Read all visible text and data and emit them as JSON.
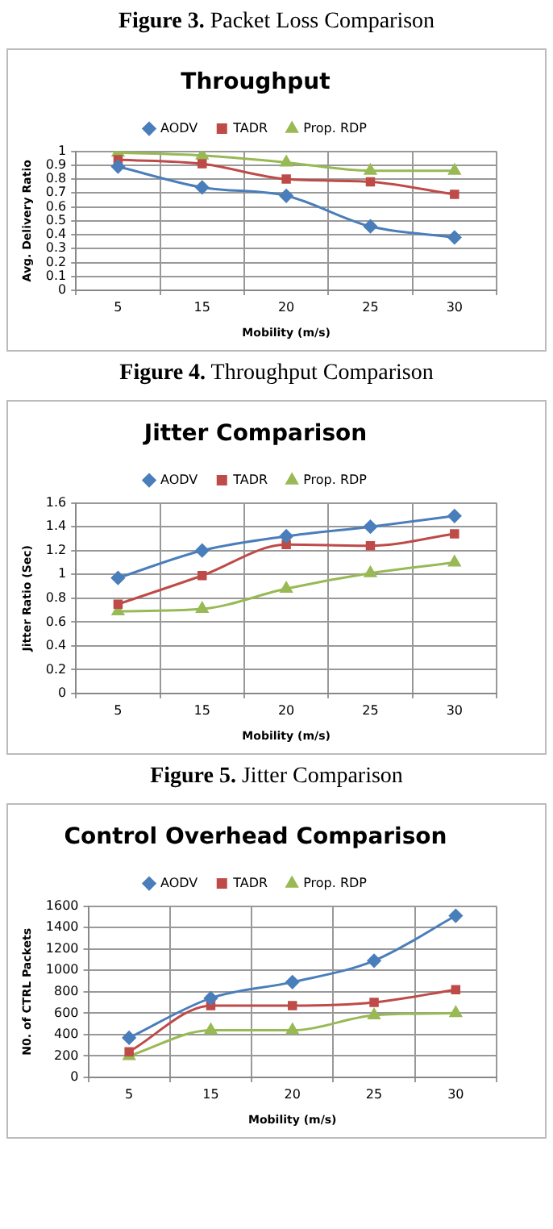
{
  "chart_data": [
    {
      "type": "line",
      "title": "Throughput",
      "xlabel": "Mobility (m/s)",
      "ylabel": "Avg. Delivery Ratio",
      "categories": [
        "5",
        "15",
        "20",
        "25",
        "30"
      ],
      "series": [
        {
          "name": "AODV",
          "color": "#4a7ebb",
          "marker": "diamond",
          "values": [
            0.89,
            0.74,
            0.68,
            0.46,
            0.38
          ]
        },
        {
          "name": "TADR",
          "color": "#be4b48",
          "marker": "square",
          "values": [
            0.94,
            0.91,
            0.8,
            0.78,
            0.69
          ]
        },
        {
          "name": "Prop. RDP",
          "color": "#98b954",
          "marker": "triangle",
          "values": [
            0.99,
            0.97,
            0.92,
            0.86,
            0.86
          ]
        }
      ],
      "ylim": [
        0,
        1
      ],
      "yticks": [
        0,
        0.1,
        0.2,
        0.3,
        0.4,
        0.5,
        0.6,
        0.7,
        0.8,
        0.9,
        1
      ],
      "grid": true,
      "legend": "top",
      "annotations": [
        "Figure 3. Packet Loss Comparison",
        "Figure 4. Throughput Comparison"
      ]
    },
    {
      "type": "line",
      "title": "Jitter Comparison",
      "xlabel": "Mobility (m/s)",
      "ylabel": "Jitter Ratio (Sec)",
      "categories": [
        "5",
        "15",
        "20",
        "25",
        "30"
      ],
      "series": [
        {
          "name": "AODV",
          "color": "#4a7ebb",
          "marker": "diamond",
          "values": [
            0.97,
            1.2,
            1.32,
            1.4,
            1.49
          ]
        },
        {
          "name": "TADR",
          "color": "#be4b48",
          "marker": "square",
          "values": [
            0.75,
            0.99,
            1.25,
            1.24,
            1.34
          ]
        },
        {
          "name": "Prop. RDP",
          "color": "#98b954",
          "marker": "triangle",
          "values": [
            0.69,
            0.71,
            0.88,
            1.01,
            1.1
          ]
        }
      ],
      "ylim": [
        0,
        1.6
      ],
      "yticks": [
        0,
        0.2,
        0.4,
        0.6,
        0.8,
        1,
        1.2,
        1.4,
        1.6
      ],
      "grid": true,
      "legend": "top",
      "annotations": [
        "Figure 5. Jitter Comparison"
      ]
    },
    {
      "type": "line",
      "title": "Control Overhead Comparison",
      "xlabel": "Mobility (m/s)",
      "ylabel": "N0. of CTRL Packets",
      "categories": [
        "5",
        "15",
        "20",
        "25",
        "30"
      ],
      "series": [
        {
          "name": "AODV",
          "color": "#4a7ebb",
          "marker": "diamond",
          "values": [
            370,
            740,
            890,
            1090,
            1510
          ]
        },
        {
          "name": "TADR",
          "color": "#be4b48",
          "marker": "square",
          "values": [
            240,
            670,
            670,
            700,
            820
          ]
        },
        {
          "name": "Prop. RDP",
          "color": "#98b954",
          "marker": "triangle",
          "values": [
            200,
            440,
            440,
            580,
            600
          ]
        }
      ],
      "ylim": [
        0,
        1600
      ],
      "yticks": [
        0,
        200,
        400,
        600,
        800,
        1000,
        1200,
        1400,
        1600
      ],
      "grid": true,
      "legend": "top"
    }
  ]
}
